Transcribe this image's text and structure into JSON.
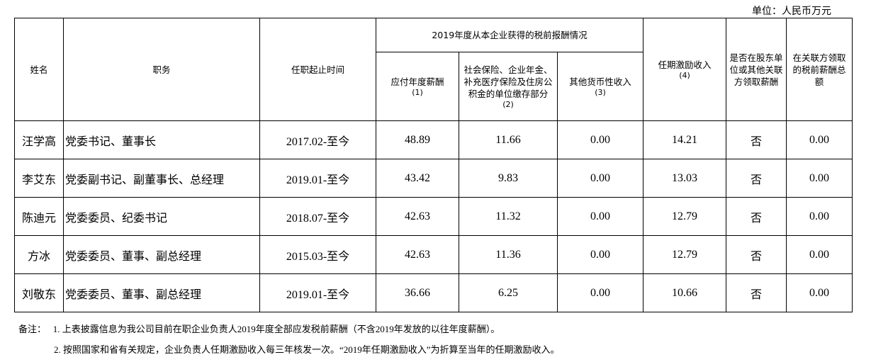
{
  "unit": "单位：人民币万元",
  "table": {
    "group_header": "2019年度从本企业获得的税前报酬情况",
    "headers": [
      {
        "text": "姓名"
      },
      {
        "text": "职务"
      },
      {
        "text": "任职起止时间"
      },
      {
        "text": "应付年度薪酬",
        "note": "(1)"
      },
      {
        "text": "社会保险、企业年金、补充医疗保险及住房公积金的单位缴存部分",
        "note": "(2)"
      },
      {
        "text": "其他货币性收入",
        "note": "(3)"
      },
      {
        "text": "任期激励收入",
        "note": "(4)"
      },
      {
        "text": "是否在股东单位或其他关联方领取薪酬"
      },
      {
        "text": "在关联方领取的税前薪酬总额"
      }
    ],
    "rows": [
      [
        "汪学高",
        "党委书记、董事长",
        "2017.02-至今",
        "48.89",
        "11.66",
        "0.00",
        "14.21",
        "否",
        "0.00"
      ],
      [
        "李艾东",
        "党委副书记、副董事长、总经理",
        "2019.01-至今",
        "43.42",
        "9.83",
        "0.00",
        "13.03",
        "否",
        "0.00"
      ],
      [
        "陈迪元",
        "党委委员、纪委书记",
        "2018.07-至今",
        "42.63",
        "11.32",
        "0.00",
        "12.79",
        "否",
        "0.00"
      ],
      [
        "方冰",
        "党委委员、董事、副总经理",
        "2015.03-至今",
        "42.63",
        "11.36",
        "0.00",
        "12.79",
        "否",
        "0.00"
      ],
      [
        "刘敬东",
        "党委委员、董事、副总经理",
        "2019.01-至今",
        "36.66",
        "6.25",
        "0.00",
        "10.66",
        "否",
        "0.00"
      ]
    ]
  },
  "notes_label": "备注：",
  "notes": [
    "1. 上表披露信息为我公司目前在职企业负责人2019年度全部应发税前薪酬（不含2019年发放的以往年度薪酬）。",
    "2. 按照国家和省有关规定，企业负责人任期激励收入每三年核发一次。“2019年任期激励收入”为折算至当年的任期激励收入。"
  ]
}
